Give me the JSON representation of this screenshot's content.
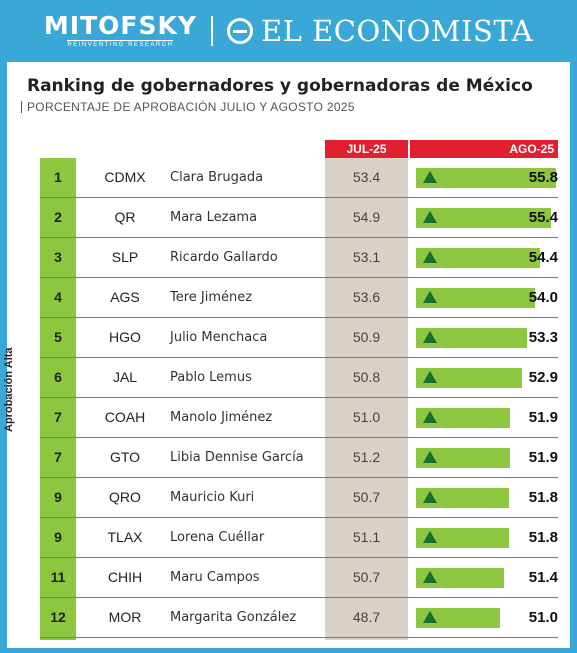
{
  "header": {
    "brand_left": "MITOFSKY",
    "brand_left_tagline": "REINVENTING RESEARCH",
    "brand_right": "EL ECONOMISTA"
  },
  "colors": {
    "background": "#3aa8d6",
    "accent_red": "#e0202e",
    "bar_green": "#8dc63f",
    "arrow_green": "#1a6e2e",
    "jul_column": "#d9d1c8"
  },
  "icons": {
    "economista_logo": "globe-icon",
    "change_marker": "triangle-up-icon"
  },
  "chart_data": {
    "type": "table",
    "title": "Ranking de gobernadores y gobernadoras de México",
    "subtitle": "PORCENTAJE DE APROBACIÓN JULIO Y AGOSTO 2025",
    "side_label": "Aprobación Alta",
    "columns": {
      "jul": "JUL-25",
      "ago": "AGO-25"
    },
    "rows": [
      {
        "rank": "1",
        "state": "CDMX",
        "governor": "Clara Brugada",
        "jul": "53.4",
        "ago": "55.8"
      },
      {
        "rank": "2",
        "state": "QR",
        "governor": "Mara Lezama",
        "jul": "54.9",
        "ago": "55.4"
      },
      {
        "rank": "3",
        "state": "SLP",
        "governor": "Ricardo Gallardo",
        "jul": "53.1",
        "ago": "54.4"
      },
      {
        "rank": "4",
        "state": "AGS",
        "governor": "Tere Jiménez",
        "jul": "53.6",
        "ago": "54.0"
      },
      {
        "rank": "5",
        "state": "HGO",
        "governor": "Julio Menchaca",
        "jul": "50.9",
        "ago": "53.3"
      },
      {
        "rank": "6",
        "state": "JAL",
        "governor": "Pablo Lemus",
        "jul": "50.8",
        "ago": "52.9"
      },
      {
        "rank": "7",
        "state": "COAH",
        "governor": "Manolo Jiménez",
        "jul": "51.0",
        "ago": "51.9"
      },
      {
        "rank": "7",
        "state": "GTO",
        "governor": "Libia Dennise García",
        "jul": "51.2",
        "ago": "51.9"
      },
      {
        "rank": "9",
        "state": "QRO",
        "governor": "Mauricio Kuri",
        "jul": "50.7",
        "ago": "51.8"
      },
      {
        "rank": "9",
        "state": "TLAX",
        "governor": "Lorena Cuéllar",
        "jul": "51.1",
        "ago": "51.8"
      },
      {
        "rank": "11",
        "state": "CHIH",
        "governor": "Maru Campos",
        "jul": "50.7",
        "ago": "51.4"
      },
      {
        "rank": "12",
        "state": "MOR",
        "governor": "Margarita González",
        "jul": "48.7",
        "ago": "51.0"
      }
    ]
  }
}
